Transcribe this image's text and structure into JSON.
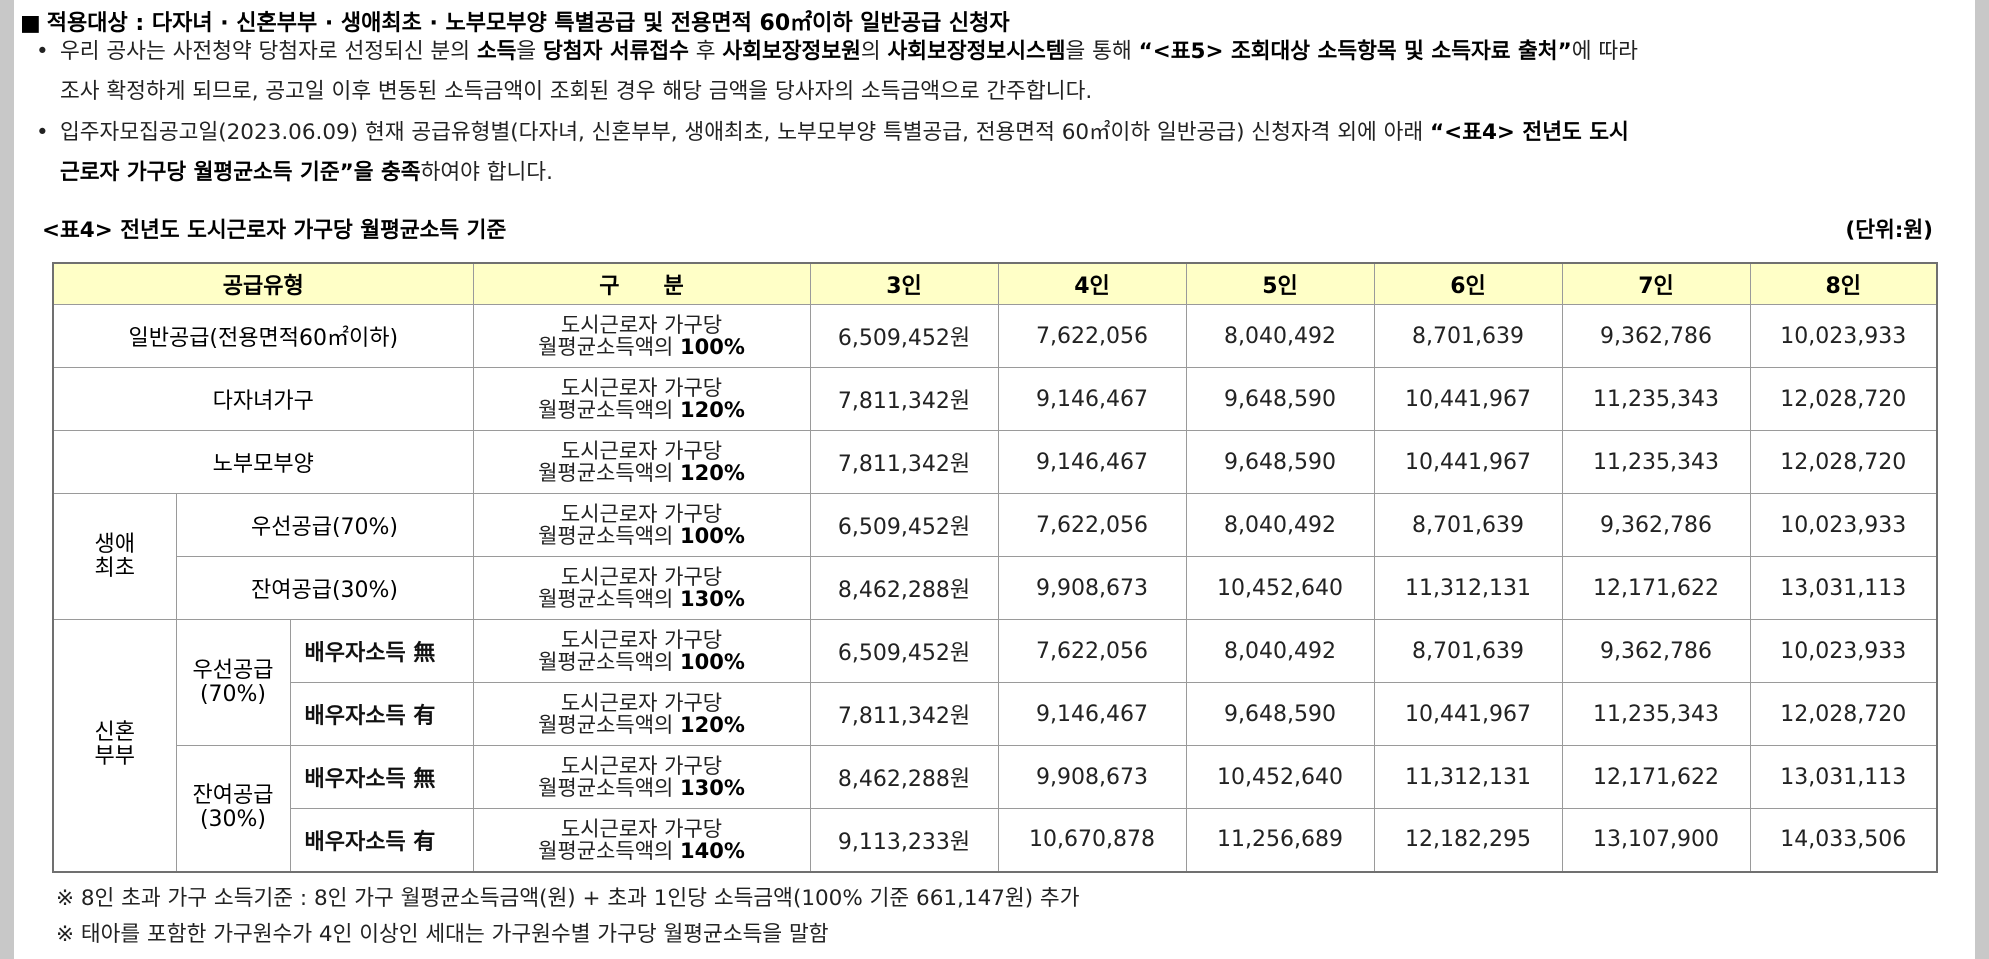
{
  "heading": "적용대상 : 다자녀 · 신혼부부 · 생애최초 · 노부모부양 특별공급 및 전용면적 60㎡이하 일반공급 신청자",
  "bullets": {
    "b1_line1_a": "우리 공사는 사전청약 당첨자로 선정되신 분의 ",
    "b1_line1_b": "소득",
    "b1_line1_c": "을 ",
    "b1_line1_d": "당첨자 서류접수",
    "b1_line1_e": " 후 ",
    "b1_line1_f": "사회보장정보원",
    "b1_line1_g": "의 ",
    "b1_line1_h": "사회보장정보시스템",
    "b1_line1_i": "을 통해 ",
    "b1_line1_j": "“<표5> 조회대상 소득항목 및 소득자료 출처”",
    "b1_line1_k": "에 따라",
    "b1_line2": "조사 확정하게 되므로, 공고일 이후 변동된 소득금액이 조회된 경우 해당 금액을 당사자의 소득금액으로 간주합니다.",
    "b2_line1_a": "입주자모집공고일(2023.06.09) 현재 공급유형별(다자녀, 신혼부부, 생애최초, 노부모부양 특별공급, 전용면적 60㎡이하 일반공급) 신청자격 외에 아래 ",
    "b2_line1_b": "“<표4> 전년도 도시",
    "b2_line2_a": "근로자 가구당 월평균소득 기준”을 충족",
    "b2_line2_b": "하여야 합니다."
  },
  "caption": "<표4> 전년도 도시근로자 가구당 월평균소득 기준",
  "unit": "(단위:원)",
  "table": {
    "headers": [
      "공급유형",
      "구　　분",
      "3인",
      "4인",
      "5인",
      "6인",
      "7인",
      "8인"
    ],
    "desc_line1": "도시근로자 가구당",
    "desc_line2": "월평균소득액의",
    "groups": {
      "first_time": "생애\n최초",
      "newlywed": "신혼\n부부",
      "priority": "우선공급\n(70%)",
      "remaining": "잔여공급\n(30%)"
    },
    "rows": [
      {
        "type": "일반공급(전용면적60㎡이하)",
        "pct": "100%",
        "values": [
          "6,509,452원",
          "7,622,056",
          "8,040,492",
          "8,701,639",
          "9,362,786",
          "10,023,933"
        ]
      },
      {
        "type": "다자녀가구",
        "pct": "120%",
        "values": [
          "7,811,342원",
          "9,146,467",
          "9,648,590",
          "10,441,967",
          "11,235,343",
          "12,028,720"
        ]
      },
      {
        "type": "노부모부양",
        "pct": "120%",
        "values": [
          "7,811,342원",
          "9,146,467",
          "9,648,590",
          "10,441,967",
          "11,235,343",
          "12,028,720"
        ]
      },
      {
        "type": "우선공급(70%)",
        "pct": "100%",
        "values": [
          "6,509,452원",
          "7,622,056",
          "8,040,492",
          "8,701,639",
          "9,362,786",
          "10,023,933"
        ]
      },
      {
        "type": "잔여공급(30%)",
        "pct": "130%",
        "values": [
          "8,462,288원",
          "9,908,673",
          "10,452,640",
          "11,312,131",
          "12,171,622",
          "13,031,113"
        ]
      },
      {
        "type": "배우자소득 無",
        "pct": "100%",
        "values": [
          "6,509,452원",
          "7,622,056",
          "8,040,492",
          "8,701,639",
          "9,362,786",
          "10,023,933"
        ]
      },
      {
        "type": "배우자소득 有",
        "pct": "120%",
        "values": [
          "7,811,342원",
          "9,146,467",
          "9,648,590",
          "10,441,967",
          "11,235,343",
          "12,028,720"
        ]
      },
      {
        "type": "배우자소득 無",
        "pct": "130%",
        "values": [
          "8,462,288원",
          "9,908,673",
          "10,452,640",
          "11,312,131",
          "12,171,622",
          "13,031,113"
        ]
      },
      {
        "type": "배우자소득 有",
        "pct": "140%",
        "values": [
          "9,113,233원",
          "10,670,878",
          "11,256,689",
          "12,182,295",
          "13,107,900",
          "14,033,506"
        ]
      }
    ]
  },
  "notes": [
    "※ 8인 초과 가구 소득기준 : 8인 가구 월평균소득금액(원) + 초과 1인당 소득금액(100% 기준 661,147원) 추가",
    "※ 태아를 포함한 가구원수가 4인 이상인 세대는 가구원수별 가구당 월평균소득을 말함"
  ]
}
